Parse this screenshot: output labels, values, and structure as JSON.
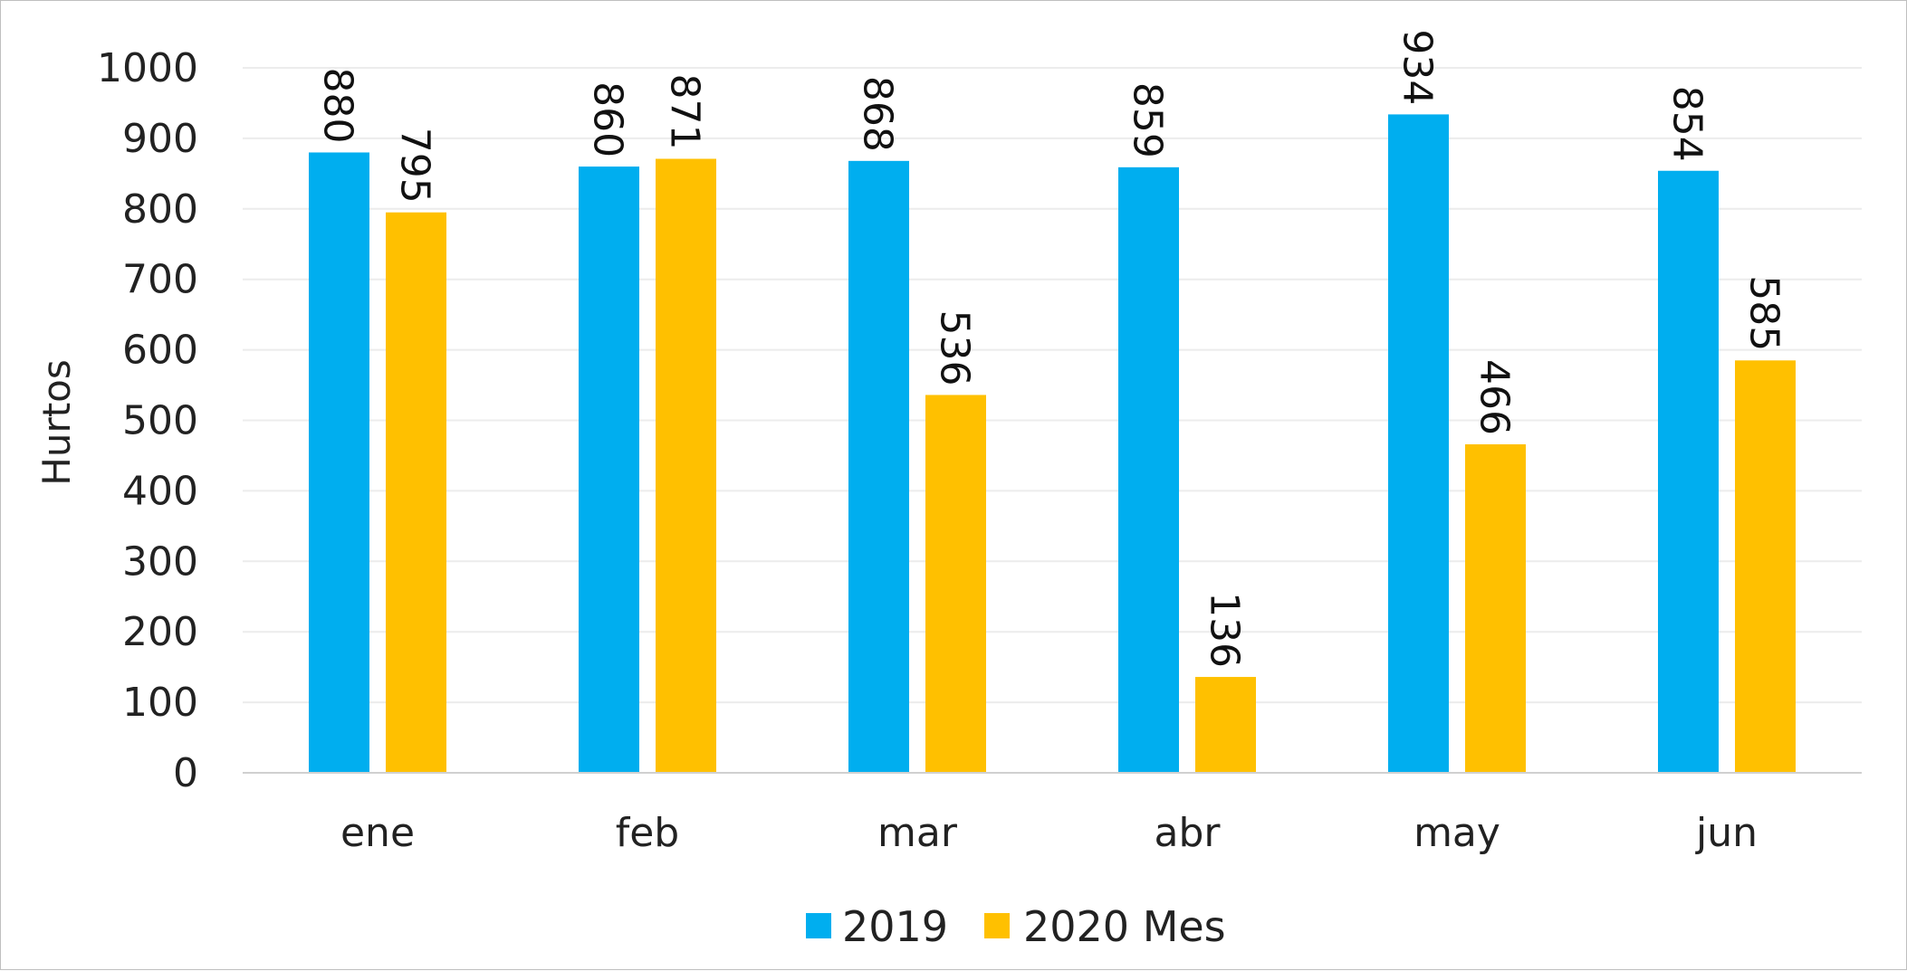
{
  "chart_data": {
    "type": "bar",
    "title": "",
    "xlabel": "",
    "ylabel": "Hurtos",
    "ylim": [
      0,
      1000
    ],
    "yticks": [
      0,
      100,
      200,
      300,
      400,
      500,
      600,
      700,
      800,
      900,
      1000
    ],
    "grid": true,
    "legend_position": "bottom",
    "categories": [
      "ene",
      "feb",
      "mar",
      "abr",
      "may",
      "jun"
    ],
    "series": [
      {
        "name": "2019",
        "color": "#00AEEF",
        "values": [
          880,
          860,
          868,
          859,
          934,
          854
        ]
      },
      {
        "name": "2020 Mes",
        "color": "#FFC000",
        "values": [
          795,
          871,
          536,
          136,
          466,
          585
        ]
      }
    ],
    "data_labels": true,
    "data_label_orientation": "rotated-90-clockwise"
  }
}
